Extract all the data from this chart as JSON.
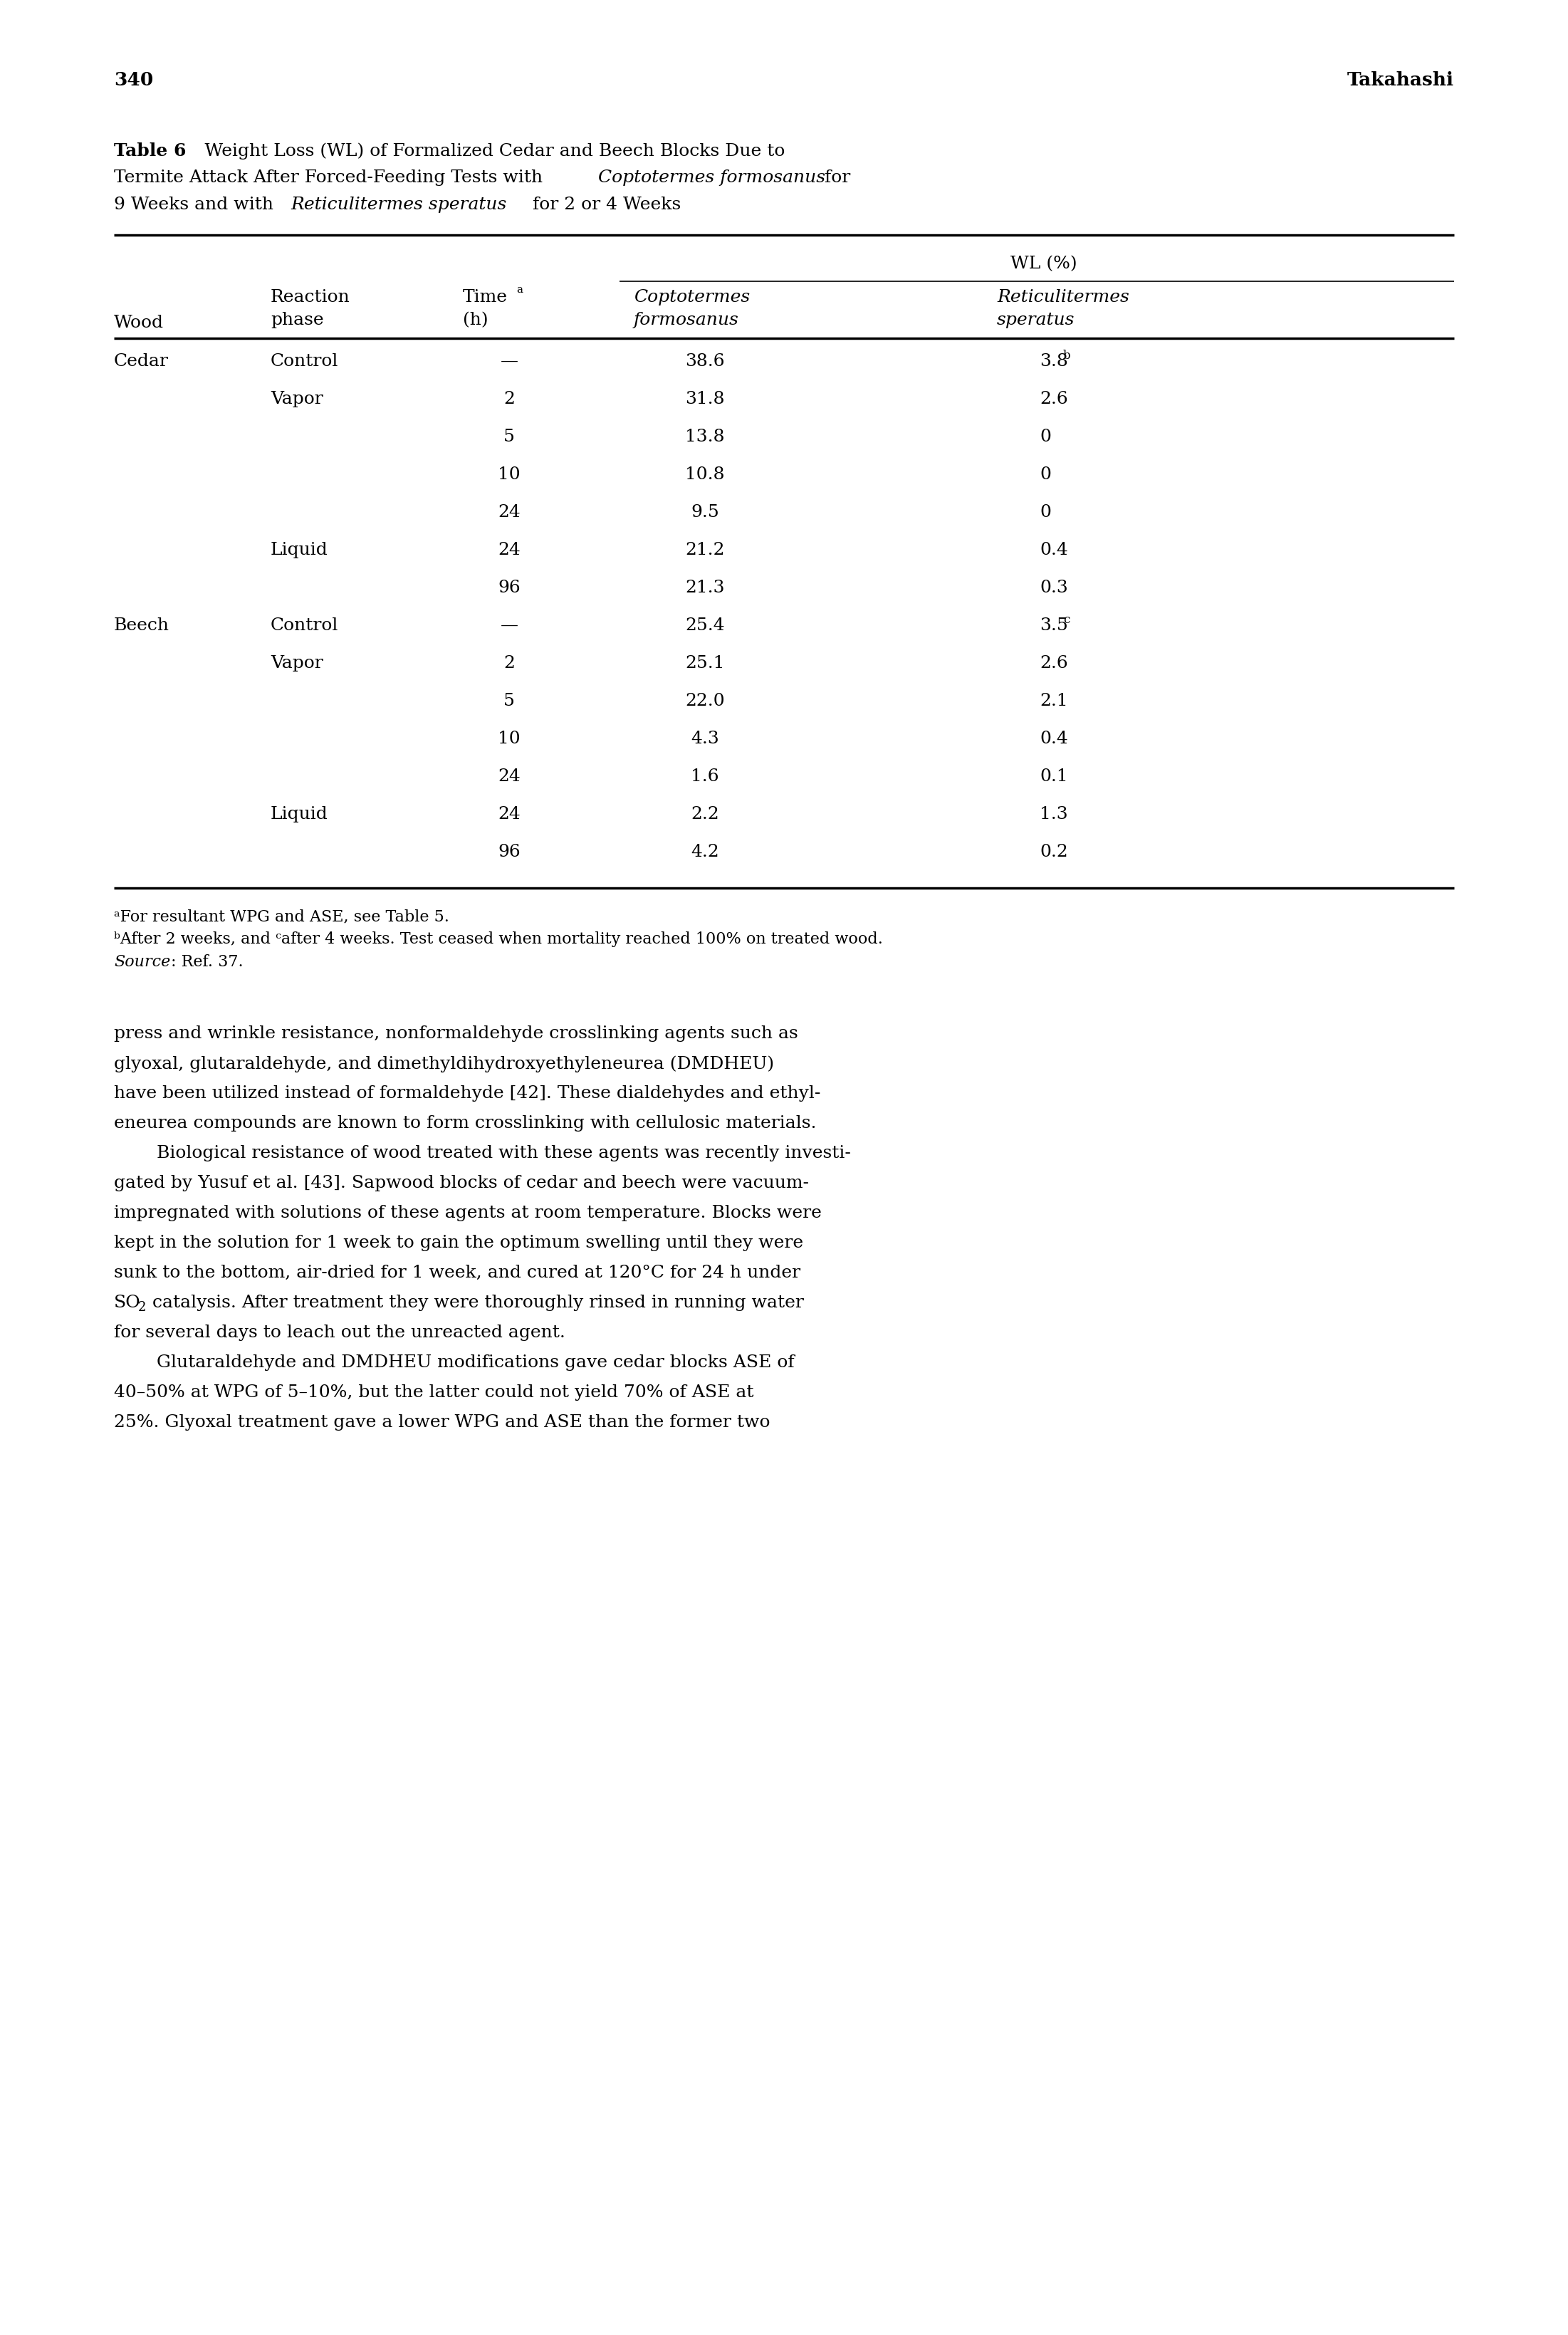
{
  "page_number": "340",
  "page_header_right": "Takahashi",
  "rows": [
    [
      "Cedar",
      "Control",
      "—",
      "38.6",
      "3.8",
      "b"
    ],
    [
      "",
      "Vapor",
      "2",
      "31.8",
      "2.6",
      ""
    ],
    [
      "",
      "",
      "5",
      "13.8",
      "0",
      ""
    ],
    [
      "",
      "",
      "10",
      "10.8",
      "0",
      ""
    ],
    [
      "",
      "",
      "24",
      "9.5",
      "0",
      ""
    ],
    [
      "",
      "Liquid",
      "24",
      "21.2",
      "0.4",
      ""
    ],
    [
      "",
      "",
      "96",
      "21.3",
      "0.3",
      ""
    ],
    [
      "Beech",
      "Control",
      "—",
      "25.4",
      "3.5",
      "c"
    ],
    [
      "",
      "Vapor",
      "2",
      "25.1",
      "2.6",
      ""
    ],
    [
      "",
      "",
      "5",
      "22.0",
      "2.1",
      ""
    ],
    [
      "",
      "",
      "10",
      "4.3",
      "0.4",
      ""
    ],
    [
      "",
      "",
      "24",
      "1.6",
      "0.1",
      ""
    ],
    [
      "",
      "Liquid",
      "24",
      "2.2",
      "1.3",
      ""
    ],
    [
      "",
      "",
      "96",
      "4.2",
      "0.2",
      ""
    ]
  ],
  "bg_color": "#ffffff",
  "text_color": "#000000"
}
